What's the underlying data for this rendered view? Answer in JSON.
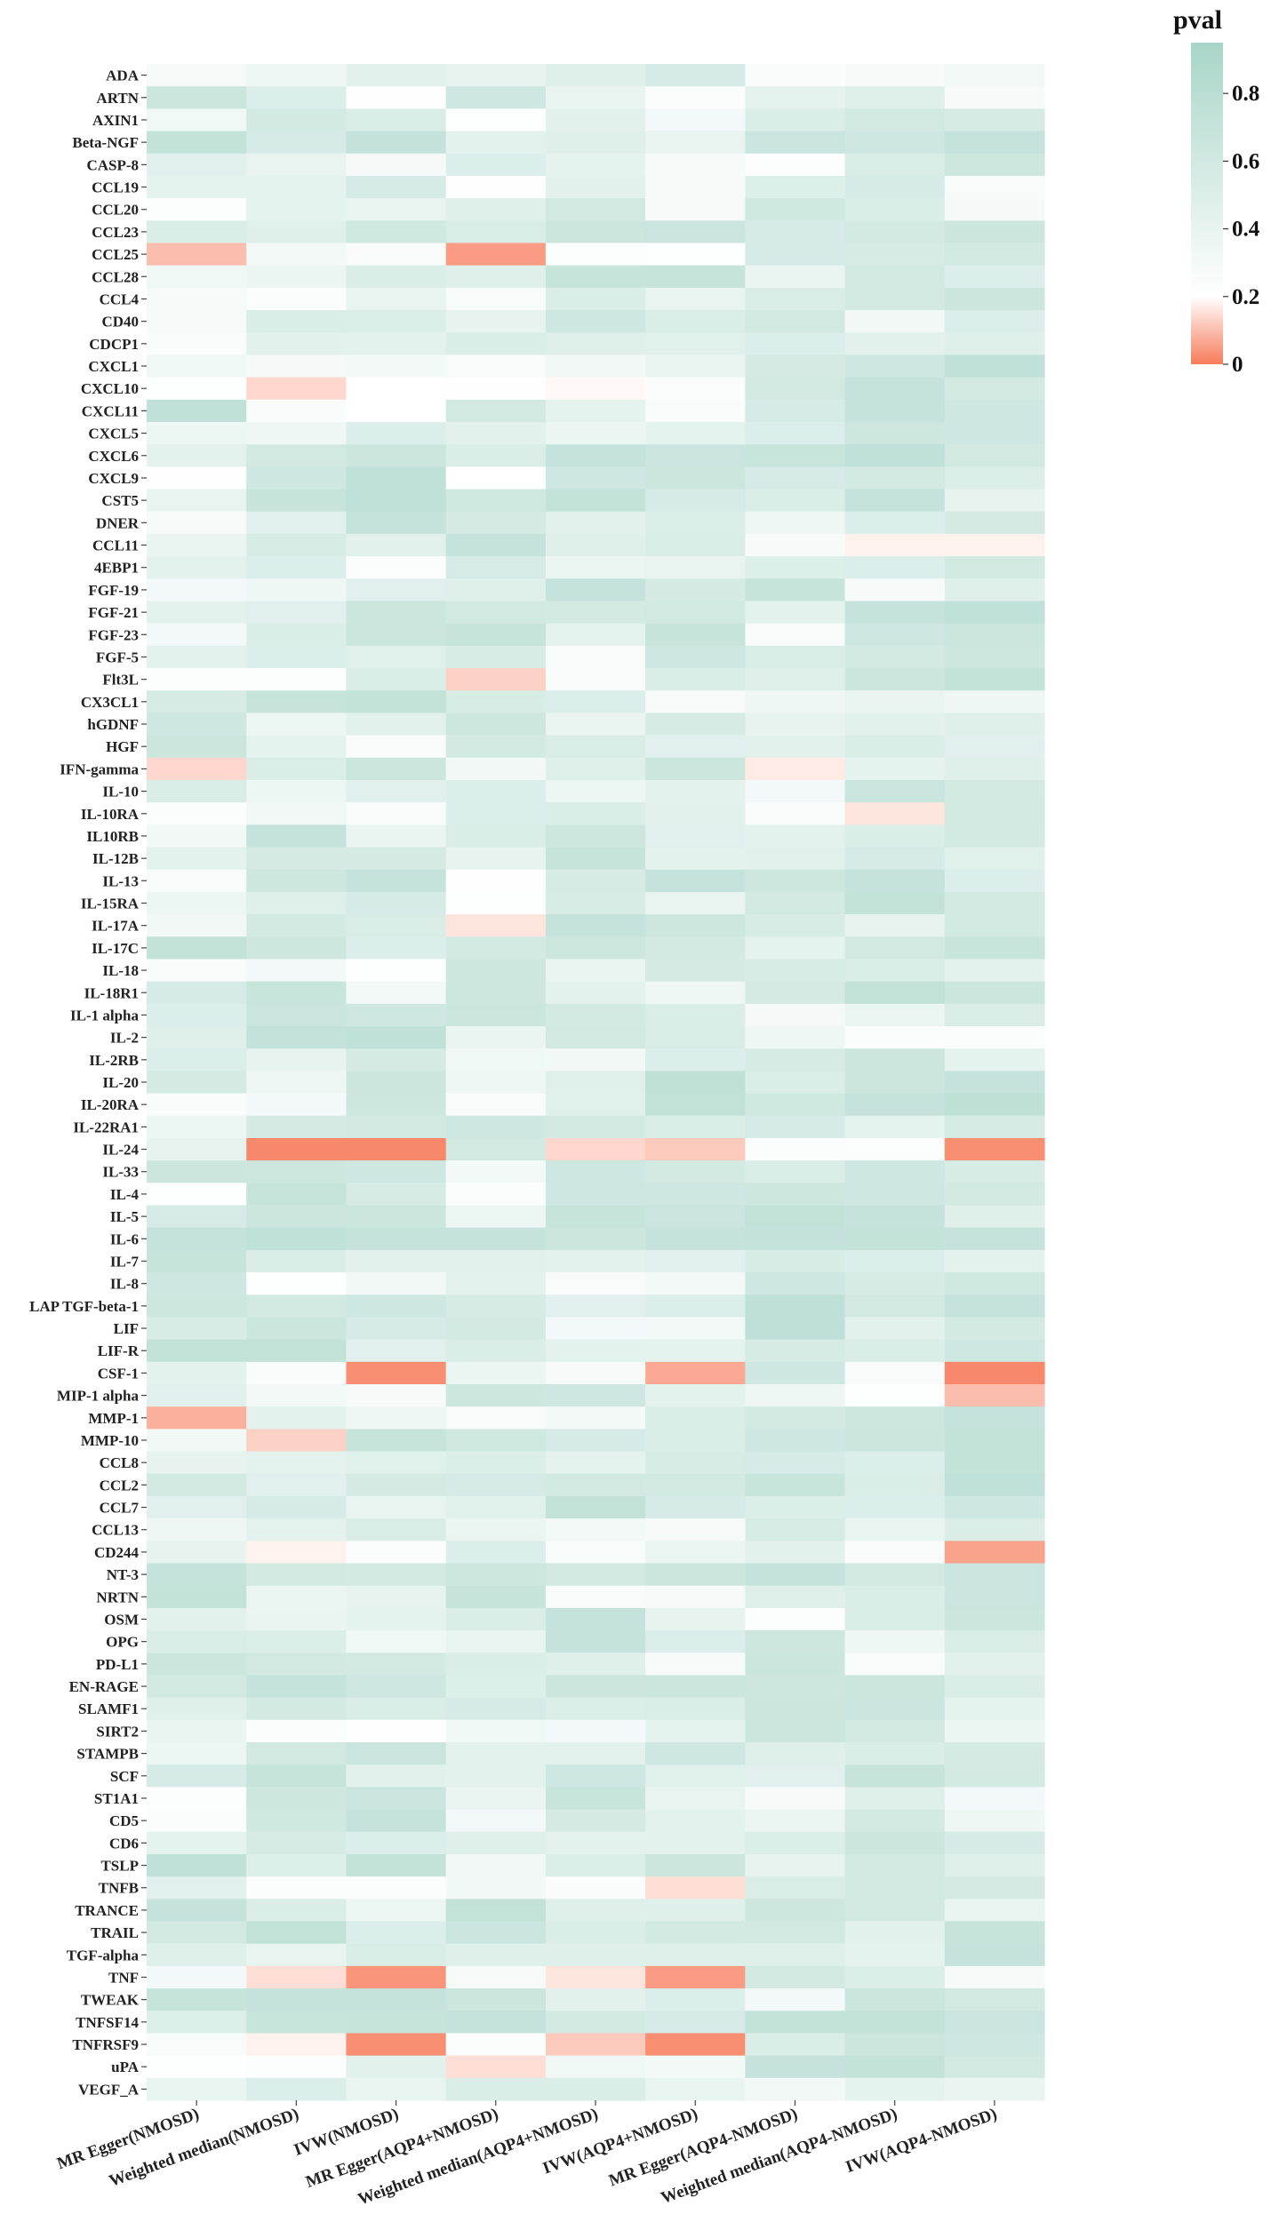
{
  "chart_data": {
    "type": "heatmap",
    "title": "",
    "xlabel": "",
    "ylabel": "",
    "color_scale": {
      "title": "pval",
      "ticks": [
        "0",
        "0.2",
        "0.4",
        "0.6",
        "0.8"
      ],
      "tick_values": [
        0,
        0.2,
        0.4,
        0.6,
        0.8
      ],
      "range": [
        0,
        0.95
      ],
      "low_color": "#f77b5a",
      "mid_value": 0.2,
      "mid_color": "#ffffff",
      "high_color": "#a8d5c7"
    },
    "columns": [
      "MR Egger(NMOSD)",
      "Weighted median(NMOSD)",
      "IVW(NMOSD)",
      "MR Egger(AQP4+NMOSD)",
      "Weighted median(AQP4+NMOSD)",
      "IVW(AQP4+NMOSD)",
      "MR Egger(AQP4-NMOSD)",
      "Weighted median(AQP4-NMOSD)",
      "IVW(AQP4-NMOSD)"
    ],
    "rows": [
      "ADA",
      "ARTN",
      "AXIN1",
      "Beta-NGF",
      "CASP-8",
      "CCL19",
      "CCL20",
      "CCL23",
      "CCL25",
      "CCL28",
      "CCL4",
      "CD40",
      "CDCP1",
      "CXCL1",
      "CXCL10",
      "CXCL11",
      "CXCL5",
      "CXCL6",
      "CXCL9",
      "CST5",
      "DNER",
      "CCL11",
      "4EBP1",
      "FGF-19",
      "FGF-21",
      "FGF-23",
      "FGF-5",
      "Flt3L",
      "CX3CL1",
      "hGDNF",
      "HGF",
      "IFN-gamma",
      "IL-10",
      "IL-10RA",
      "IL10RB",
      "IL-12B",
      "IL-13",
      "IL-15RA",
      "IL-17A",
      "IL-17C",
      "IL-18",
      "IL-18R1",
      "IL-1 alpha",
      "IL-2",
      "IL-2RB",
      "IL-20",
      "IL-20RA",
      "IL-22RA1",
      "IL-24",
      "IL-33",
      "IL-4",
      "IL-5",
      "IL-6",
      "IL-7",
      "IL-8",
      "LAP TGF-beta-1",
      "LIF",
      "LIF-R",
      "CSF-1",
      "MIP-1 alpha",
      "MMP-1",
      "MMP-10",
      "CCL8",
      "CCL2",
      "CCL7",
      "CCL13",
      "CD244",
      "NT-3",
      "NRTN",
      "OSM",
      "OPG",
      "PD-L1",
      "EN-RAGE",
      "SLAMF1",
      "SIRT2",
      "STAMPB",
      "SCF",
      "ST1A1",
      "CD5",
      "CD6",
      "TSLP",
      "TNFB",
      "TRANCE",
      "TRAIL",
      "TGF-alpha",
      "TNF",
      "TWEAK",
      "TNFSF14",
      "TNFRSF9",
      "uPA",
      "VEGF_A"
    ],
    "values": [
      [
        0.28,
        0.34,
        0.45,
        0.41,
        0.48,
        0.55,
        0.26,
        0.28,
        0.31
      ],
      [
        0.65,
        0.5,
        0.21,
        0.62,
        0.4,
        0.24,
        0.42,
        0.48,
        0.28
      ],
      [
        0.33,
        0.58,
        0.53,
        0.22,
        0.45,
        0.3,
        0.52,
        0.6,
        0.56
      ],
      [
        0.72,
        0.55,
        0.71,
        0.44,
        0.48,
        0.39,
        0.66,
        0.62,
        0.7
      ],
      [
        0.46,
        0.39,
        0.29,
        0.5,
        0.42,
        0.28,
        0.23,
        0.53,
        0.63
      ],
      [
        0.42,
        0.42,
        0.55,
        0.21,
        0.45,
        0.28,
        0.49,
        0.55,
        0.27
      ],
      [
        0.23,
        0.42,
        0.4,
        0.48,
        0.59,
        0.28,
        0.61,
        0.52,
        0.29
      ],
      [
        0.52,
        0.48,
        0.61,
        0.53,
        0.65,
        0.66,
        0.55,
        0.58,
        0.64
      ],
      [
        0.1,
        0.31,
        0.25,
        0.05,
        0.23,
        0.22,
        0.55,
        0.56,
        0.59
      ],
      [
        0.33,
        0.37,
        0.52,
        0.48,
        0.68,
        0.69,
        0.38,
        0.6,
        0.5
      ],
      [
        0.28,
        0.24,
        0.4,
        0.27,
        0.52,
        0.4,
        0.53,
        0.59,
        0.64
      ],
      [
        0.28,
        0.52,
        0.51,
        0.41,
        0.62,
        0.52,
        0.6,
        0.32,
        0.5
      ],
      [
        0.26,
        0.45,
        0.44,
        0.52,
        0.48,
        0.47,
        0.5,
        0.45,
        0.48
      ],
      [
        0.33,
        0.29,
        0.31,
        0.27,
        0.32,
        0.39,
        0.57,
        0.62,
        0.74
      ],
      [
        0.22,
        0.14,
        0.2,
        0.21,
        0.19,
        0.24,
        0.6,
        0.7,
        0.58
      ],
      [
        0.74,
        0.25,
        0.2,
        0.6,
        0.42,
        0.26,
        0.55,
        0.7,
        0.62
      ],
      [
        0.36,
        0.35,
        0.5,
        0.45,
        0.37,
        0.42,
        0.5,
        0.63,
        0.62
      ],
      [
        0.44,
        0.6,
        0.64,
        0.52,
        0.7,
        0.66,
        0.67,
        0.74,
        0.59
      ],
      [
        0.21,
        0.62,
        0.74,
        0.2,
        0.62,
        0.65,
        0.55,
        0.58,
        0.51
      ],
      [
        0.4,
        0.68,
        0.74,
        0.61,
        0.72,
        0.55,
        0.52,
        0.7,
        0.41
      ],
      [
        0.28,
        0.46,
        0.7,
        0.57,
        0.45,
        0.51,
        0.34,
        0.5,
        0.57
      ],
      [
        0.38,
        0.54,
        0.45,
        0.7,
        0.48,
        0.53,
        0.28,
        0.18,
        0.18
      ],
      [
        0.43,
        0.5,
        0.24,
        0.55,
        0.37,
        0.39,
        0.49,
        0.5,
        0.58
      ],
      [
        0.3,
        0.34,
        0.46,
        0.48,
        0.7,
        0.57,
        0.68,
        0.28,
        0.48
      ],
      [
        0.43,
        0.46,
        0.65,
        0.6,
        0.58,
        0.6,
        0.44,
        0.7,
        0.74
      ],
      [
        0.3,
        0.52,
        0.65,
        0.69,
        0.42,
        0.69,
        0.27,
        0.62,
        0.65
      ],
      [
        0.44,
        0.5,
        0.47,
        0.54,
        0.27,
        0.62,
        0.53,
        0.58,
        0.63
      ],
      [
        0.23,
        0.23,
        0.52,
        0.13,
        0.27,
        0.52,
        0.48,
        0.65,
        0.72
      ],
      [
        0.56,
        0.68,
        0.72,
        0.54,
        0.5,
        0.28,
        0.34,
        0.38,
        0.35
      ],
      [
        0.62,
        0.36,
        0.45,
        0.63,
        0.38,
        0.56,
        0.41,
        0.45,
        0.48
      ],
      [
        0.64,
        0.42,
        0.25,
        0.58,
        0.53,
        0.46,
        0.45,
        0.52,
        0.46
      ],
      [
        0.14,
        0.52,
        0.65,
        0.32,
        0.48,
        0.65,
        0.17,
        0.42,
        0.48
      ],
      [
        0.53,
        0.36,
        0.46,
        0.5,
        0.36,
        0.43,
        0.3,
        0.66,
        0.58
      ],
      [
        0.24,
        0.32,
        0.26,
        0.5,
        0.52,
        0.45,
        0.26,
        0.16,
        0.6
      ],
      [
        0.32,
        0.7,
        0.38,
        0.52,
        0.63,
        0.46,
        0.43,
        0.52,
        0.58
      ],
      [
        0.43,
        0.57,
        0.57,
        0.41,
        0.68,
        0.43,
        0.45,
        0.55,
        0.47
      ],
      [
        0.27,
        0.63,
        0.7,
        0.21,
        0.56,
        0.7,
        0.63,
        0.7,
        0.5
      ],
      [
        0.36,
        0.48,
        0.55,
        0.22,
        0.54,
        0.4,
        0.58,
        0.72,
        0.58
      ],
      [
        0.32,
        0.58,
        0.53,
        0.16,
        0.7,
        0.63,
        0.54,
        0.41,
        0.58
      ],
      [
        0.72,
        0.63,
        0.5,
        0.58,
        0.63,
        0.58,
        0.42,
        0.6,
        0.67
      ],
      [
        0.26,
        0.3,
        0.22,
        0.63,
        0.38,
        0.57,
        0.54,
        0.53,
        0.43
      ],
      [
        0.55,
        0.67,
        0.31,
        0.63,
        0.43,
        0.34,
        0.57,
        0.73,
        0.65
      ],
      [
        0.5,
        0.66,
        0.62,
        0.65,
        0.58,
        0.52,
        0.29,
        0.37,
        0.53
      ],
      [
        0.48,
        0.71,
        0.74,
        0.38,
        0.59,
        0.53,
        0.34,
        0.24,
        0.24
      ],
      [
        0.5,
        0.41,
        0.57,
        0.33,
        0.32,
        0.5,
        0.56,
        0.64,
        0.42
      ],
      [
        0.57,
        0.34,
        0.64,
        0.34,
        0.48,
        0.76,
        0.52,
        0.64,
        0.7
      ],
      [
        0.26,
        0.3,
        0.63,
        0.27,
        0.47,
        0.73,
        0.61,
        0.7,
        0.76
      ],
      [
        0.36,
        0.57,
        0.6,
        0.62,
        0.58,
        0.52,
        0.55,
        0.42,
        0.56
      ],
      [
        0.41,
        0.02,
        0.02,
        0.6,
        0.14,
        0.12,
        0.24,
        0.24,
        0.03
      ],
      [
        0.64,
        0.63,
        0.62,
        0.31,
        0.62,
        0.58,
        0.52,
        0.62,
        0.54
      ],
      [
        0.22,
        0.68,
        0.56,
        0.24,
        0.62,
        0.62,
        0.63,
        0.62,
        0.58
      ],
      [
        0.55,
        0.64,
        0.65,
        0.36,
        0.68,
        0.66,
        0.73,
        0.7,
        0.48
      ],
      [
        0.7,
        0.74,
        0.7,
        0.7,
        0.65,
        0.7,
        0.71,
        0.72,
        0.7
      ],
      [
        0.68,
        0.53,
        0.45,
        0.45,
        0.44,
        0.46,
        0.54,
        0.5,
        0.44
      ],
      [
        0.62,
        0.22,
        0.32,
        0.43,
        0.27,
        0.31,
        0.62,
        0.56,
        0.61
      ],
      [
        0.63,
        0.59,
        0.62,
        0.56,
        0.46,
        0.5,
        0.75,
        0.6,
        0.7
      ],
      [
        0.54,
        0.65,
        0.55,
        0.58,
        0.3,
        0.31,
        0.75,
        0.45,
        0.58
      ],
      [
        0.73,
        0.73,
        0.46,
        0.52,
        0.44,
        0.42,
        0.56,
        0.52,
        0.62
      ],
      [
        0.43,
        0.26,
        0.03,
        0.37,
        0.28,
        0.07,
        0.62,
        0.27,
        0.02
      ],
      [
        0.46,
        0.31,
        0.28,
        0.63,
        0.62,
        0.43,
        0.34,
        0.22,
        0.1
      ],
      [
        0.08,
        0.44,
        0.35,
        0.27,
        0.31,
        0.52,
        0.58,
        0.63,
        0.7
      ],
      [
        0.32,
        0.13,
        0.68,
        0.61,
        0.55,
        0.52,
        0.62,
        0.64,
        0.72
      ],
      [
        0.41,
        0.44,
        0.47,
        0.51,
        0.42,
        0.54,
        0.55,
        0.5,
        0.72
      ],
      [
        0.58,
        0.46,
        0.57,
        0.55,
        0.59,
        0.58,
        0.67,
        0.52,
        0.74
      ],
      [
        0.46,
        0.55,
        0.4,
        0.47,
        0.73,
        0.55,
        0.51,
        0.5,
        0.62
      ],
      [
        0.35,
        0.44,
        0.53,
        0.37,
        0.31,
        0.28,
        0.54,
        0.4,
        0.52
      ],
      [
        0.41,
        0.18,
        0.24,
        0.5,
        0.27,
        0.37,
        0.45,
        0.25,
        0.06
      ],
      [
        0.7,
        0.59,
        0.58,
        0.63,
        0.6,
        0.65,
        0.7,
        0.59,
        0.66
      ],
      [
        0.72,
        0.37,
        0.41,
        0.68,
        0.27,
        0.28,
        0.48,
        0.52,
        0.66
      ],
      [
        0.45,
        0.38,
        0.42,
        0.52,
        0.7,
        0.41,
        0.23,
        0.52,
        0.65
      ],
      [
        0.53,
        0.51,
        0.33,
        0.4,
        0.7,
        0.5,
        0.63,
        0.34,
        0.53
      ],
      [
        0.64,
        0.6,
        0.58,
        0.52,
        0.48,
        0.28,
        0.65,
        0.27,
        0.45
      ],
      [
        0.6,
        0.7,
        0.62,
        0.49,
        0.64,
        0.65,
        0.63,
        0.65,
        0.52
      ],
      [
        0.48,
        0.58,
        0.52,
        0.55,
        0.51,
        0.52,
        0.64,
        0.66,
        0.42
      ],
      [
        0.38,
        0.24,
        0.21,
        0.33,
        0.3,
        0.42,
        0.65,
        0.6,
        0.37
      ],
      [
        0.36,
        0.6,
        0.66,
        0.44,
        0.44,
        0.62,
        0.48,
        0.52,
        0.57
      ],
      [
        0.55,
        0.68,
        0.45,
        0.43,
        0.62,
        0.47,
        0.46,
        0.68,
        0.58
      ],
      [
        0.23,
        0.63,
        0.66,
        0.38,
        0.67,
        0.4,
        0.28,
        0.48,
        0.3
      ],
      [
        0.24,
        0.61,
        0.7,
        0.3,
        0.57,
        0.44,
        0.37,
        0.58,
        0.34
      ],
      [
        0.42,
        0.56,
        0.5,
        0.48,
        0.43,
        0.44,
        0.51,
        0.64,
        0.55
      ],
      [
        0.74,
        0.49,
        0.72,
        0.32,
        0.51,
        0.65,
        0.41,
        0.58,
        0.48
      ],
      [
        0.46,
        0.24,
        0.24,
        0.32,
        0.25,
        0.15,
        0.53,
        0.6,
        0.57
      ],
      [
        0.7,
        0.52,
        0.36,
        0.73,
        0.48,
        0.48,
        0.63,
        0.59,
        0.4
      ],
      [
        0.59,
        0.73,
        0.5,
        0.66,
        0.52,
        0.58,
        0.59,
        0.45,
        0.68
      ],
      [
        0.48,
        0.4,
        0.53,
        0.48,
        0.48,
        0.48,
        0.48,
        0.42,
        0.7
      ],
      [
        0.3,
        0.15,
        0.04,
        0.28,
        0.16,
        0.05,
        0.58,
        0.51,
        0.28
      ],
      [
        0.68,
        0.7,
        0.7,
        0.65,
        0.45,
        0.5,
        0.3,
        0.65,
        0.6
      ],
      [
        0.49,
        0.67,
        0.68,
        0.7,
        0.58,
        0.55,
        0.72,
        0.72,
        0.66
      ],
      [
        0.27,
        0.18,
        0.03,
        0.24,
        0.12,
        0.03,
        0.52,
        0.64,
        0.62
      ],
      [
        0.22,
        0.23,
        0.45,
        0.15,
        0.33,
        0.31,
        0.7,
        0.72,
        0.6
      ],
      [
        0.4,
        0.5,
        0.4,
        0.52,
        0.52,
        0.4,
        0.32,
        0.42,
        0.38
      ]
    ]
  }
}
